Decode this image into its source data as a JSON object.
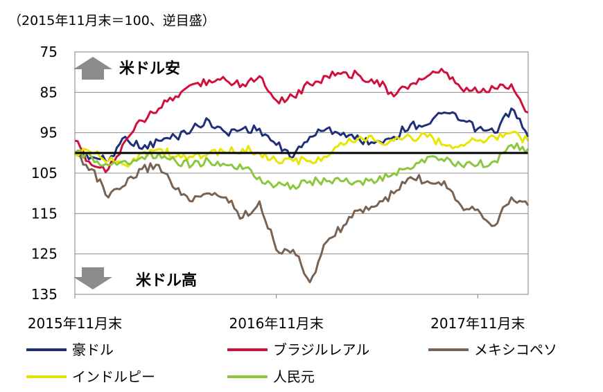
{
  "chart_data": {
    "type": "line",
    "unit_note": "（2015年11月末＝100、逆目盛）",
    "y_axis": {
      "inverted": true,
      "min": 75,
      "max": 135,
      "ticks": [
        "75",
        "85",
        "95",
        "105",
        "115",
        "125",
        "135"
      ],
      "grid": true
    },
    "x_axis": {
      "start": "2015-11",
      "end": "2018-02",
      "tick_labels": [
        "2015年11月末",
        "2016年11月末",
        "2017年11月末"
      ]
    },
    "reference_line": 100,
    "annotations": {
      "up": "米ドル安",
      "down": "米ドル高"
    },
    "legend_position": "bottom",
    "series": [
      {
        "name": "豪ドル",
        "color": "#1f2f7a",
        "values": [
          {
            "x": "2015-11",
            "y": 100
          },
          {
            "x": "2015-12",
            "y": 101
          },
          {
            "x": "2016-01",
            "y": 102
          },
          {
            "x": "2016-02",
            "y": 96
          },
          {
            "x": "2016-03",
            "y": 99
          },
          {
            "x": "2016-04",
            "y": 97
          },
          {
            "x": "2016-05",
            "y": 96
          },
          {
            "x": "2016-06",
            "y": 94
          },
          {
            "x": "2016-07",
            "y": 92
          },
          {
            "x": "2016-08",
            "y": 95
          },
          {
            "x": "2016-09",
            "y": 94
          },
          {
            "x": "2016-10",
            "y": 94
          },
          {
            "x": "2016-11",
            "y": 98
          },
          {
            "x": "2016-12",
            "y": 101
          },
          {
            "x": "2017-01",
            "y": 96
          },
          {
            "x": "2017-02",
            "y": 94
          },
          {
            "x": "2017-03",
            "y": 95
          },
          {
            "x": "2017-04",
            "y": 97
          },
          {
            "x": "2017-05",
            "y": 97
          },
          {
            "x": "2017-06",
            "y": 96
          },
          {
            "x": "2017-07",
            "y": 93
          },
          {
            "x": "2017-08",
            "y": 93
          },
          {
            "x": "2017-09",
            "y": 90
          },
          {
            "x": "2017-10",
            "y": 92
          },
          {
            "x": "2017-11",
            "y": 94
          },
          {
            "x": "2017-12",
            "y": 95
          },
          {
            "x": "2018-01",
            "y": 89
          },
          {
            "x": "2018-02",
            "y": 96
          }
        ]
      },
      {
        "name": "ブラジルレアル",
        "color": "#d0103a",
        "values": [
          {
            "x": "2015-11",
            "y": 97
          },
          {
            "x": "2015-12",
            "y": 103
          },
          {
            "x": "2016-01",
            "y": 104
          },
          {
            "x": "2016-02",
            "y": 97
          },
          {
            "x": "2016-03",
            "y": 92
          },
          {
            "x": "2016-04",
            "y": 89
          },
          {
            "x": "2016-05",
            "y": 86
          },
          {
            "x": "2016-06",
            "y": 83
          },
          {
            "x": "2016-07",
            "y": 82
          },
          {
            "x": "2016-08",
            "y": 82
          },
          {
            "x": "2016-09",
            "y": 83
          },
          {
            "x": "2016-10",
            "y": 81
          },
          {
            "x": "2016-11",
            "y": 87
          },
          {
            "x": "2016-12",
            "y": 86
          },
          {
            "x": "2017-01",
            "y": 83
          },
          {
            "x": "2017-02",
            "y": 81
          },
          {
            "x": "2017-03",
            "y": 80
          },
          {
            "x": "2017-04",
            "y": 81
          },
          {
            "x": "2017-05",
            "y": 82
          },
          {
            "x": "2017-06",
            "y": 86
          },
          {
            "x": "2017-07",
            "y": 83
          },
          {
            "x": "2017-08",
            "y": 81
          },
          {
            "x": "2017-09",
            "y": 80
          },
          {
            "x": "2017-10",
            "y": 84
          },
          {
            "x": "2017-11",
            "y": 85
          },
          {
            "x": "2017-12",
            "y": 84
          },
          {
            "x": "2018-01",
            "y": 83
          },
          {
            "x": "2018-02",
            "y": 90
          }
        ]
      },
      {
        "name": "メキシコペソ",
        "color": "#7a6251",
        "values": [
          {
            "x": "2015-11",
            "y": 100
          },
          {
            "x": "2015-12",
            "y": 104
          },
          {
            "x": "2016-01",
            "y": 111
          },
          {
            "x": "2016-02",
            "y": 108
          },
          {
            "x": "2016-03",
            "y": 104
          },
          {
            "x": "2016-04",
            "y": 103
          },
          {
            "x": "2016-05",
            "y": 109
          },
          {
            "x": "2016-06",
            "y": 112
          },
          {
            "x": "2016-07",
            "y": 110
          },
          {
            "x": "2016-08",
            "y": 111
          },
          {
            "x": "2016-09",
            "y": 116
          },
          {
            "x": "2016-10",
            "y": 112
          },
          {
            "x": "2016-11",
            "y": 124
          },
          {
            "x": "2016-12",
            "y": 124
          },
          {
            "x": "2017-01",
            "y": 132
          },
          {
            "x": "2017-02",
            "y": 122
          },
          {
            "x": "2017-03",
            "y": 118
          },
          {
            "x": "2017-04",
            "y": 114
          },
          {
            "x": "2017-05",
            "y": 113
          },
          {
            "x": "2017-06",
            "y": 110
          },
          {
            "x": "2017-07",
            "y": 106
          },
          {
            "x": "2017-08",
            "y": 107
          },
          {
            "x": "2017-09",
            "y": 107
          },
          {
            "x": "2017-10",
            "y": 113
          },
          {
            "x": "2017-11",
            "y": 114
          },
          {
            "x": "2017-12",
            "y": 118
          },
          {
            "x": "2018-01",
            "y": 111
          },
          {
            "x": "2018-02",
            "y": 113
          }
        ]
      },
      {
        "name": "インドルピー",
        "color": "#e6e600",
        "values": [
          {
            "x": "2015-11",
            "y": 100
          },
          {
            "x": "2015-12",
            "y": 100
          },
          {
            "x": "2016-01",
            "y": 102
          },
          {
            "x": "2016-02",
            "y": 103
          },
          {
            "x": "2016-03",
            "y": 100
          },
          {
            "x": "2016-04",
            "y": 99
          },
          {
            "x": "2016-05",
            "y": 101
          },
          {
            "x": "2016-06",
            "y": 101
          },
          {
            "x": "2016-07",
            "y": 100
          },
          {
            "x": "2016-08",
            "y": 100
          },
          {
            "x": "2016-09",
            "y": 99
          },
          {
            "x": "2016-10",
            "y": 100
          },
          {
            "x": "2016-11",
            "y": 102
          },
          {
            "x": "2016-12",
            "y": 102
          },
          {
            "x": "2017-01",
            "y": 102
          },
          {
            "x": "2017-02",
            "y": 101
          },
          {
            "x": "2017-03",
            "y": 98
          },
          {
            "x": "2017-04",
            "y": 96
          },
          {
            "x": "2017-05",
            "y": 97
          },
          {
            "x": "2017-06",
            "y": 97
          },
          {
            "x": "2017-07",
            "y": 96
          },
          {
            "x": "2017-08",
            "y": 96
          },
          {
            "x": "2017-09",
            "y": 98
          },
          {
            "x": "2017-10",
            "y": 98
          },
          {
            "x": "2017-11",
            "y": 97
          },
          {
            "x": "2017-12",
            "y": 96
          },
          {
            "x": "2018-01",
            "y": 95
          },
          {
            "x": "2018-02",
            "y": 97
          }
        ]
      },
      {
        "name": "人民元",
        "color": "#8cc63f",
        "values": [
          {
            "x": "2015-11",
            "y": 100
          },
          {
            "x": "2015-12",
            "y": 101
          },
          {
            "x": "2016-01",
            "y": 103
          },
          {
            "x": "2016-02",
            "y": 102
          },
          {
            "x": "2016-03",
            "y": 101
          },
          {
            "x": "2016-04",
            "y": 100
          },
          {
            "x": "2016-05",
            "y": 102
          },
          {
            "x": "2016-06",
            "y": 103
          },
          {
            "x": "2016-07",
            "y": 102
          },
          {
            "x": "2016-08",
            "y": 103
          },
          {
            "x": "2016-09",
            "y": 104
          },
          {
            "x": "2016-10",
            "y": 106
          },
          {
            "x": "2016-11",
            "y": 108
          },
          {
            "x": "2016-12",
            "y": 108
          },
          {
            "x": "2017-01",
            "y": 107
          },
          {
            "x": "2017-02",
            "y": 107
          },
          {
            "x": "2017-03",
            "y": 107
          },
          {
            "x": "2017-04",
            "y": 107
          },
          {
            "x": "2017-05",
            "y": 107
          },
          {
            "x": "2017-06",
            "y": 105
          },
          {
            "x": "2017-07",
            "y": 104
          },
          {
            "x": "2017-08",
            "y": 101
          },
          {
            "x": "2017-09",
            "y": 102
          },
          {
            "x": "2017-10",
            "y": 103
          },
          {
            "x": "2017-11",
            "y": 103
          },
          {
            "x": "2017-12",
            "y": 102
          },
          {
            "x": "2018-01",
            "y": 98
          },
          {
            "x": "2018-02",
            "y": 99
          }
        ]
      }
    ]
  }
}
